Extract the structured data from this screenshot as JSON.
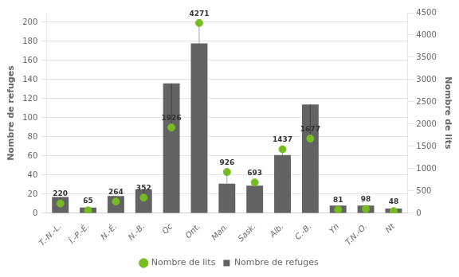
{
  "chart_data": {
    "type": "bar",
    "categories": [
      "T.-N.-L.",
      "Î.-P.-É.",
      "N.-É.",
      "N.-B.",
      "Qc",
      "Ont.",
      "Man.",
      "Sask.",
      "Alb.",
      "C.-B.",
      "Yn",
      "T.N.-O.",
      "Nt"
    ],
    "series": [
      {
        "name": "Nombre de refuges",
        "type": "bar",
        "color": "#636363",
        "values": [
          17,
          6,
          18,
          25,
          136,
          178,
          31,
          29,
          61,
          114,
          8,
          8,
          5
        ]
      },
      {
        "name": "Nombre de lits",
        "type": "scatter",
        "color": "#76BC21",
        "marker": "circle",
        "axis": "y2",
        "data_labels": true,
        "values": [
          220,
          65,
          264,
          352,
          1926,
          4271,
          926,
          693,
          1437,
          1677,
          81,
          98,
          48
        ]
      }
    ],
    "ylabel": "Nombre de refuges",
    "y2label": "Nombre de lits",
    "ylim": [
      0,
      210
    ],
    "yticks": [
      0,
      20,
      40,
      60,
      80,
      100,
      120,
      140,
      160,
      180,
      200
    ],
    "y2lim": [
      0,
      4500
    ],
    "y2ticks": [
      0,
      500,
      1000,
      1500,
      2000,
      2500,
      3000,
      3500,
      4000,
      4500
    ],
    "grid": true,
    "legend": "bottom"
  }
}
